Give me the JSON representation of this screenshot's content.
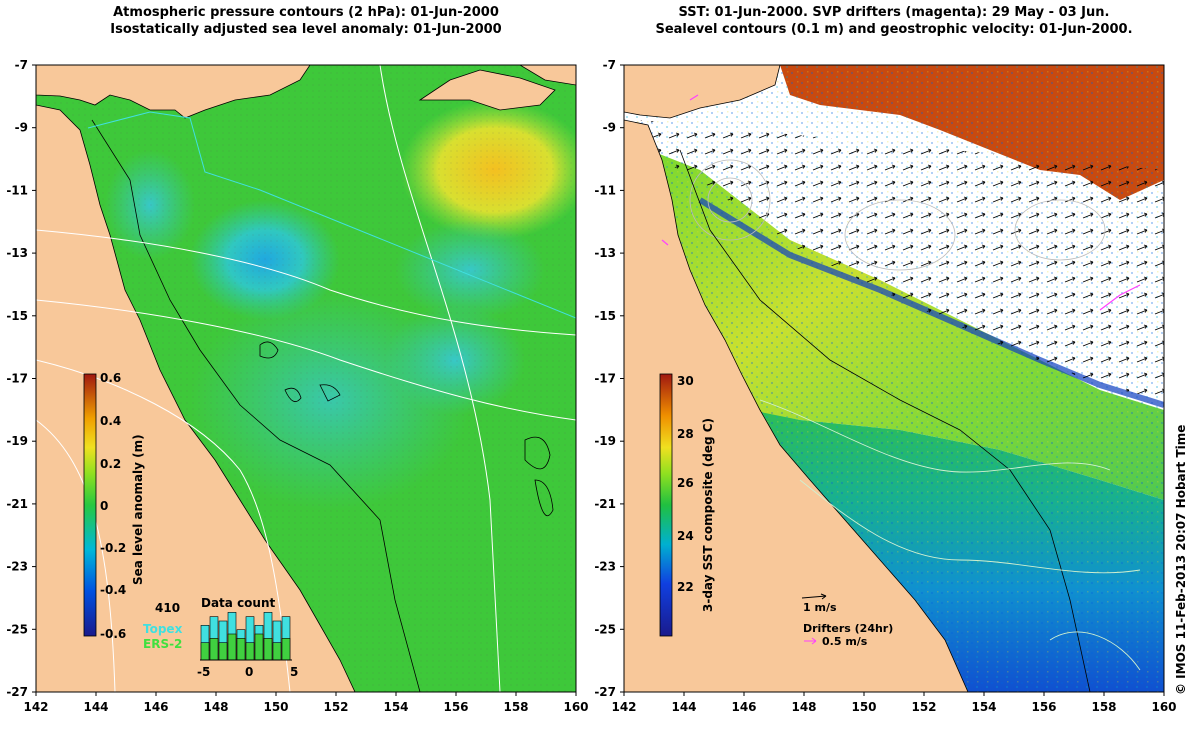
{
  "left_panel": {
    "title_line1": "Atmospheric pressure contours (2 hPa): 01-Jun-2000",
    "title_line2": "Isostatically adjusted sea level anomaly: 01-Jun-2000",
    "colorbar_label": "Sea level anomaly (m)",
    "colorbar_ticks": [
      "0.6",
      "0.4",
      "0.2",
      "0",
      "-0.2",
      "-0.4",
      "-0.6"
    ],
    "inset_title": "Data count",
    "inset_max": "410",
    "inset_x_ticks": [
      "-5",
      "0",
      "5"
    ],
    "legend_topex": "Topex",
    "legend_ers": "ERS-2",
    "inset_counts": {
      "topex": [
        8,
        10,
        9,
        11,
        7,
        10,
        8,
        11,
        9,
        10
      ],
      "ers2": [
        4,
        5,
        4,
        6,
        5,
        4,
        6,
        5,
        4,
        5
      ]
    }
  },
  "right_panel": {
    "title_line1": "SST: 01-Jun-2000. SVP drifters (magenta): 29 May - 03 Jun.",
    "title_line2": "Sealevel contours (0.1 m) and geostrophic velocity: 01-Jun-2000.",
    "colorbar_label": "3-day SST composite (deg C)",
    "colorbar_ticks": [
      "30",
      "28",
      "26",
      "24",
      "22"
    ],
    "velocity_scale": "1 m/s",
    "drifters_label": "Drifters (24hr)",
    "drifter_speed": "0.5 m/s"
  },
  "axes": {
    "lat_ticks": [
      "-7",
      "-9",
      "-11",
      "-13",
      "-15",
      "-17",
      "-19",
      "-21",
      "-23",
      "-25",
      "-27"
    ],
    "lon_ticks": [
      "142",
      "144",
      "146",
      "148",
      "150",
      "152",
      "154",
      "156",
      "158",
      "160"
    ]
  },
  "credit": "© IMOS 11-Feb-2013 20:07 Hobart Time",
  "colors": {
    "land": "#f8c89a",
    "ocean_green": "#3ec83a",
    "drifter": "#ff40ff",
    "altimeter_track": "#40e0e0"
  }
}
